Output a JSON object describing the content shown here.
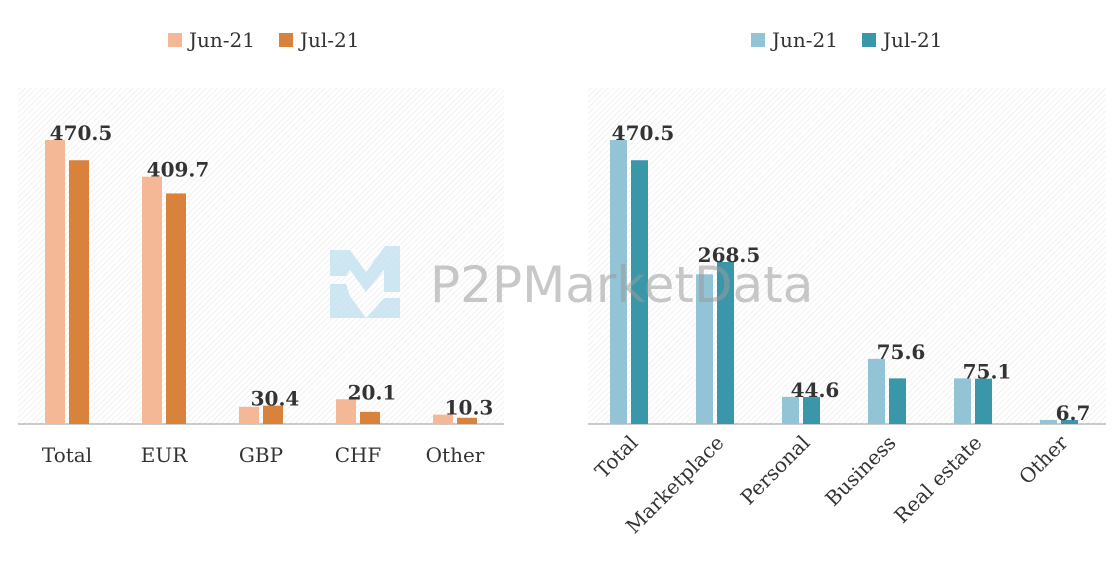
{
  "colors": {
    "left_jun": "#f5b896",
    "left_jul": "#d9823c",
    "right_jun": "#93c4d6",
    "right_jul": "#3a97aa",
    "axis": "#999999",
    "watermark_blue": "#bfe0ef",
    "watermark_gray": "#9a9a9a"
  },
  "watermark": {
    "text": "P2PMarketData",
    "icon": "p2pmarketdata-logo-icon"
  },
  "chart_data": [
    {
      "type": "bar",
      "title": "",
      "xlabel": "",
      "ylabel": "",
      "ylim": [
        0,
        500
      ],
      "grid": false,
      "legend_position": "top",
      "categories": [
        "Total",
        "EUR",
        "GBP",
        "CHF",
        "Other"
      ],
      "series": [
        {
          "name": "Jun-21",
          "values": [
            470.5,
            409.7,
            28.5,
            41.0,
            15.5
          ]
        },
        {
          "name": "Jul-21",
          "values": [
            437.0,
            382.0,
            30.4,
            20.1,
            10.3
          ]
        }
      ],
      "data_labels": [
        "470.5",
        "409.7",
        "30.4",
        "20.1",
        "10.3"
      ]
    },
    {
      "type": "bar",
      "title": "",
      "xlabel": "",
      "ylabel": "",
      "ylim": [
        0,
        500
      ],
      "grid": false,
      "legend_position": "top",
      "categories": [
        "Total",
        "Marketplace",
        "Personal",
        "Business",
        "Real estate",
        "Other"
      ],
      "series": [
        {
          "name": "Jun-21",
          "values": [
            470.5,
            248.0,
            45.0,
            108.0,
            75.6,
            6.7
          ]
        },
        {
          "name": "Jul-21",
          "values": [
            437.0,
            268.5,
            44.6,
            75.6,
            75.1,
            6.7
          ]
        }
      ],
      "data_labels": [
        "470.5",
        "268.5",
        "44.6",
        "75.6",
        "75.1",
        "6.7"
      ]
    }
  ]
}
